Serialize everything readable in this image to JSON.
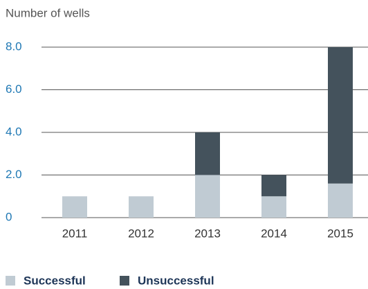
{
  "chart_data": {
    "type": "stacked_bar",
    "title": "Number of wells",
    "categories": [
      "2011",
      "2012",
      "2013",
      "2014",
      "2015"
    ],
    "series": [
      {
        "name": "Successful",
        "color": "#c0cbd3",
        "values": [
          1,
          1,
          2,
          1,
          1.6
        ]
      },
      {
        "name": "Unsuccessful",
        "color": "#44525c",
        "values": [
          0,
          0,
          2,
          1,
          6.4
        ]
      }
    ],
    "ylim": [
      0,
      8
    ],
    "yticks": [
      0,
      {
        "value": 2,
        "label": "2.0"
      },
      {
        "value": 4,
        "label": "4.0"
      },
      {
        "value": 6,
        "label": "6.0"
      },
      {
        "value": 8,
        "label": "8.0"
      }
    ],
    "grid": true,
    "legend": "bottom"
  }
}
